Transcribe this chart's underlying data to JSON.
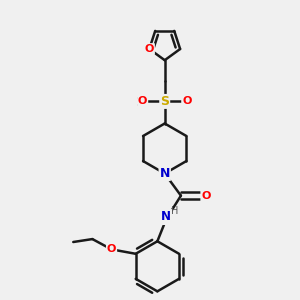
{
  "bg_color": "#f0f0f0",
  "bond_color": "#1a1a1a",
  "atom_colors": {
    "O": "#ff0000",
    "N": "#0000cd",
    "S": "#ccaa00",
    "C": "#1a1a1a",
    "H": "#555555"
  },
  "figsize": [
    3.0,
    3.0
  ],
  "dpi": 100,
  "lw": 1.8
}
